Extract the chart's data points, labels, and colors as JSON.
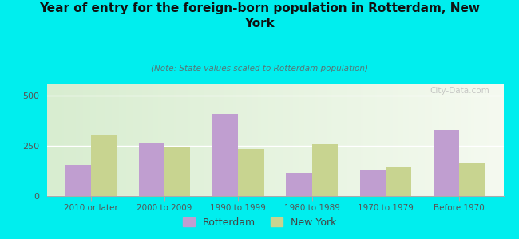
{
  "title": "Year of entry for the foreign-born population in Rotterdam, New\nYork",
  "subtitle": "(Note: State values scaled to Rotterdam population)",
  "categories": [
    "2010 or later",
    "2000 to 2009",
    "1990 to 1999",
    "1980 to 1989",
    "1970 to 1979",
    "Before 1970"
  ],
  "rotterdam_values": [
    155,
    265,
    410,
    115,
    130,
    330
  ],
  "newyork_values": [
    305,
    248,
    235,
    258,
    148,
    168
  ],
  "rotterdam_color": "#C09ED0",
  "newyork_color": "#C8D490",
  "background_outer": "#00EEEE",
  "ylim": [
    0,
    560
  ],
  "yticks": [
    0,
    250,
    500
  ],
  "bar_width": 0.35,
  "legend_labels": [
    "Rotterdam",
    "New York"
  ],
  "watermark": "City-Data.com"
}
